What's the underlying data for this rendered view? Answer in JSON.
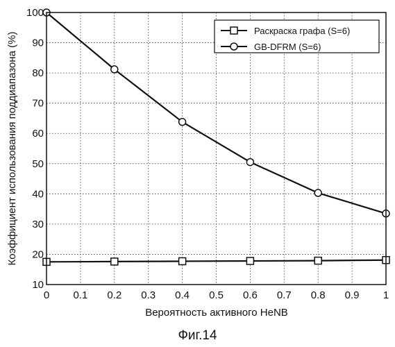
{
  "caption": "Фиг.14",
  "chart_data": {
    "type": "line",
    "xlabel": "Вероятность активного HeNB",
    "ylabel": "Коэффициент использования поддиапазона (%)",
    "xlim": [
      0,
      1
    ],
    "ylim": [
      10,
      100
    ],
    "xticks": [
      "0",
      "0.1",
      "0.2",
      "0.3",
      "0.4",
      "0.5",
      "0.6",
      "0.7",
      "0.8",
      "0.9",
      "1"
    ],
    "yticks": [
      "10",
      "20",
      "30",
      "40",
      "50",
      "60",
      "70",
      "80",
      "90",
      "100"
    ],
    "grid": true,
    "legend_position": "top-right",
    "series": [
      {
        "name": "Раскраска графа (S=6)",
        "marker": "square",
        "x": [
          0,
          0.2,
          0.4,
          0.6,
          0.8,
          1.0
        ],
        "values": [
          17.5,
          17.6,
          17.7,
          17.8,
          17.9,
          18.1
        ]
      },
      {
        "name": "GB-DFRM (S=6)",
        "marker": "circle",
        "x": [
          0,
          0.2,
          0.4,
          0.6,
          0.8,
          1.0
        ],
        "values": [
          100,
          81.2,
          63.8,
          50.5,
          40.3,
          33.5
        ]
      }
    ]
  }
}
